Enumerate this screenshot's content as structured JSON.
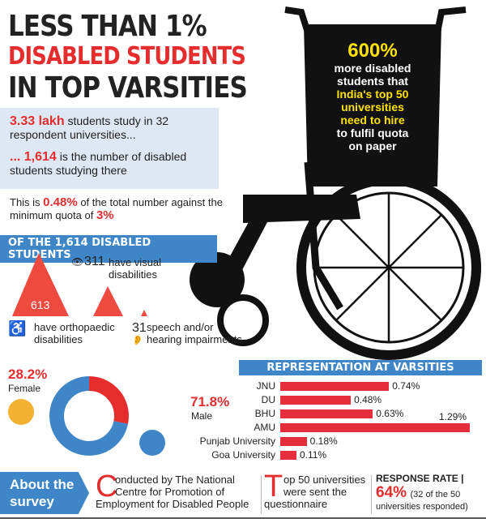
{
  "title": {
    "line1": "LESS THAN 1%",
    "line2": "DISABLED STUDENTS",
    "line3": "IN TOP VARSITIES"
  },
  "colors": {
    "red": "#e52d2d",
    "blue": "#3f86c8",
    "yellow": "#ffe100",
    "light_blue": "#dde8f4"
  },
  "wheelchair_text": {
    "big": "600%",
    "lines": [
      "more disabled",
      "students that",
      "India's top 50",
      "universities",
      "need to hire",
      "to fulfil quota",
      "on paper"
    ]
  },
  "facts": {
    "a_num": "3.33 lakh",
    "a_text": " students study in 32 respondent universities...",
    "b_num": "... 1,614",
    "b_text": " is the number of disabled students studying there",
    "c_pre": "This is ",
    "c_num": "0.48%",
    "c_mid": " of the total number against the minimum quota of ",
    "c_quota": "3%"
  },
  "breakdown": {
    "header": "OF THE 1,614 DISABLED STUDENTS",
    "ortho_num": "613",
    "ortho_text1": "have orthopaedic",
    "ortho_text2": "disabilities",
    "visual_num": "311",
    "visual_text1": "have visual",
    "visual_text2": "disabilities",
    "speech_num": "31",
    "speech_text1": "speech and/or",
    "speech_text2": "hearing impairments"
  },
  "chart_data": [
    {
      "type": "pie",
      "variant": "donut",
      "slices": [
        {
          "label": "Female",
          "value": 28.2,
          "color": "#e52d2d"
        },
        {
          "label": "Male",
          "value": 71.8,
          "color": "#3f86c8"
        }
      ],
      "labels": {
        "female_pct": "28.2%",
        "female": "Female",
        "male_pct": "71.8%",
        "male": "Male"
      }
    },
    {
      "type": "bar",
      "orientation": "horizontal",
      "title": "REPRESENTATION AT VARSITIES",
      "categories": [
        "JNU",
        "DU",
        "BHU",
        "AMU",
        "Punjab University",
        "Goa University"
      ],
      "values": [
        0.74,
        0.48,
        0.63,
        1.29,
        0.18,
        0.11
      ],
      "value_labels": [
        "0.74%",
        "0.48%",
        "0.63%",
        "1.29%",
        "0.18%",
        "0.11%"
      ],
      "color": "#e52d3b"
    }
  ],
  "survey": {
    "label1": "About the",
    "label2": "survey",
    "c_initial": "C",
    "c_text1": "onducted by The National",
    "c_text2": "Centre for Promotion of",
    "c_text3": "Employment for Disabled People",
    "t_initial": "T",
    "t_text1": "op 50 universities",
    "t_text2": "were sent the",
    "t_text3": "questionnaire",
    "rr_label": "RESPONSE RATE |",
    "rr_value": "64%",
    "rr_note1": "(32 of the 50",
    "rr_note2": "universities responded)"
  }
}
